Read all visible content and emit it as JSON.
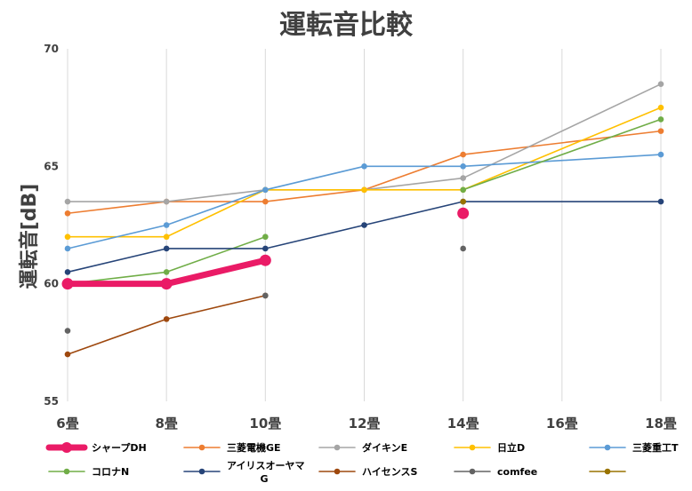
{
  "chart_data": {
    "type": "line",
    "title": "運転音比較",
    "xlabel": "",
    "ylabel": "運転音[dB]",
    "categories": [
      "6畳",
      "8畳",
      "10畳",
      "12畳",
      "14畳",
      "16畳",
      "18畳"
    ],
    "ylim": [
      55,
      70
    ],
    "yticks": [
      55,
      60,
      65,
      70
    ],
    "grid": "vertical",
    "legend_position": "bottom",
    "series": [
      {
        "name": "シャープDH",
        "color": "#ea1b66",
        "emphasis": true,
        "values": [
          60,
          60,
          61,
          null,
          63,
          null,
          null
        ],
        "connect": [
          [
            0,
            1
          ],
          [
            1,
            2
          ]
        ]
      },
      {
        "name": "三菱電機GE",
        "color": "#ed7d31",
        "values": [
          63,
          63.5,
          63.5,
          64,
          65.5,
          null,
          66.5
        ],
        "connect": [
          [
            0,
            1
          ],
          [
            1,
            2
          ],
          [
            2,
            3
          ],
          [
            3,
            4
          ],
          [
            4,
            6
          ]
        ]
      },
      {
        "name": "ダイキンE",
        "color": "#a5a5a5",
        "values": [
          63.5,
          63.5,
          64,
          64,
          64.5,
          null,
          68.5
        ],
        "connect": [
          [
            0,
            1
          ],
          [
            1,
            2
          ],
          [
            2,
            3
          ],
          [
            3,
            4
          ],
          [
            4,
            6
          ]
        ]
      },
      {
        "name": "日立D",
        "color": "#ffc000",
        "values": [
          62,
          62,
          64,
          64,
          64,
          null,
          67.5
        ],
        "connect": [
          [
            0,
            1
          ],
          [
            1,
            2
          ],
          [
            2,
            3
          ],
          [
            3,
            4
          ],
          [
            4,
            6
          ]
        ]
      },
      {
        "name": "三菱重工T",
        "color": "#5b9bd5",
        "values": [
          61.5,
          62.5,
          64,
          65,
          65,
          null,
          65.5
        ],
        "connect": [
          [
            0,
            1
          ],
          [
            1,
            2
          ],
          [
            2,
            3
          ],
          [
            3,
            4
          ],
          [
            4,
            6
          ]
        ]
      },
      {
        "name": "コロナN",
        "color": "#70ad47",
        "values": [
          60,
          60.5,
          62,
          null,
          64,
          null,
          67
        ],
        "connect": [
          [
            0,
            1
          ],
          [
            1,
            2
          ],
          [
            4,
            6
          ]
        ]
      },
      {
        "name": "アイリスオーヤマG",
        "color": "#264478",
        "values": [
          60.5,
          61.5,
          61.5,
          62.5,
          63.5,
          null,
          63.5
        ],
        "connect": [
          [
            0,
            1
          ],
          [
            1,
            2
          ],
          [
            2,
            3
          ],
          [
            3,
            4
          ],
          [
            4,
            6
          ]
        ]
      },
      {
        "name": "ハイセンスS",
        "color": "#9e480e",
        "values": [
          57,
          58.5,
          59.5,
          null,
          null,
          null,
          null
        ],
        "connect": [
          [
            0,
            1
          ],
          [
            1,
            2
          ]
        ]
      },
      {
        "name": "comfee",
        "color": "#636363",
        "values": [
          58,
          null,
          59.5,
          null,
          61.5,
          null,
          null
        ],
        "connect": []
      },
      {
        "name": "",
        "color": "#997300",
        "values": [
          null,
          null,
          null,
          null,
          63.5,
          null,
          null
        ],
        "connect": []
      }
    ]
  }
}
